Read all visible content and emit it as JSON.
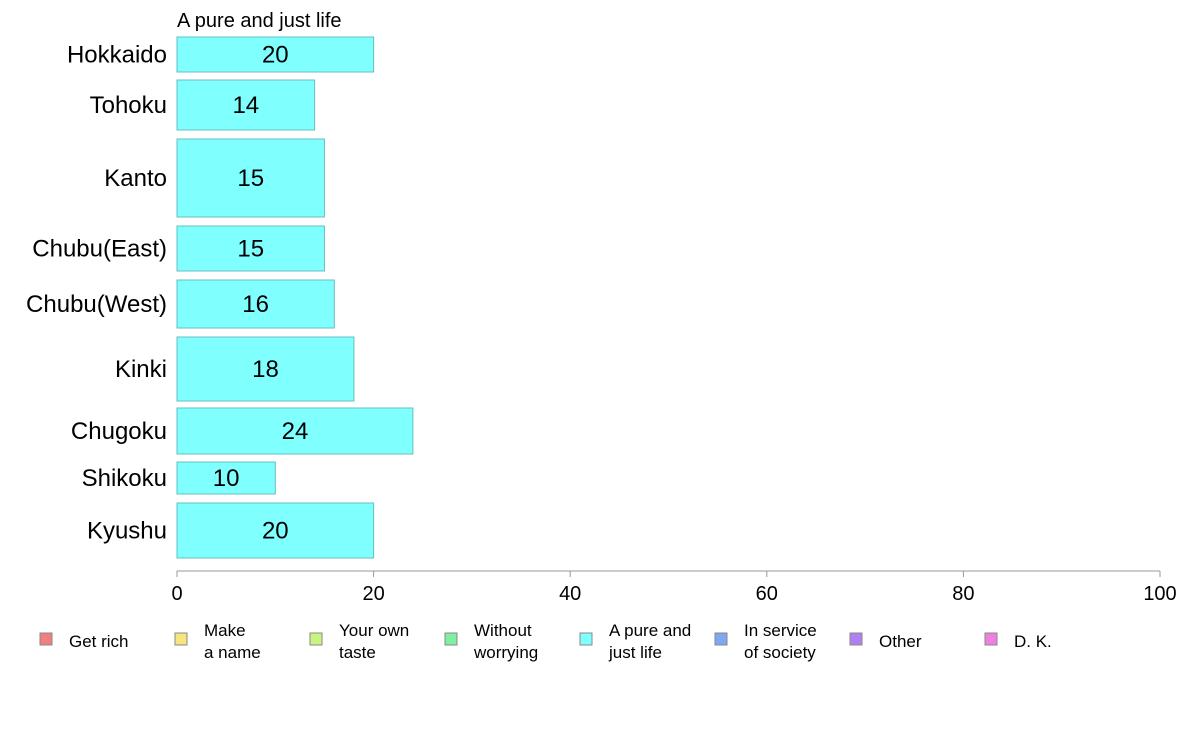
{
  "chart_data": {
    "type": "bar",
    "orientation": "horizontal",
    "title": "A pure and just life",
    "categories": [
      "Hokkaido",
      "Tohoku",
      "Kanto",
      "Chubu(East)",
      "Chubu(West)",
      "Kinki",
      "Chugoku",
      "Shikoku",
      "Kyushu"
    ],
    "values": [
      20,
      14,
      15,
      15,
      16,
      18,
      24,
      10,
      20
    ],
    "series_color": "#80ffff",
    "bar_border_color": "#66bfbf",
    "xlim": [
      0,
      100
    ],
    "xticks": [
      0,
      20,
      40,
      60,
      80,
      100
    ],
    "grid": false,
    "legend_position": "bottom",
    "legend": [
      {
        "label": [
          "Get rich"
        ],
        "color": "#f08080"
      },
      {
        "label": [
          "Make",
          "a name"
        ],
        "color": "#f5e680"
      },
      {
        "label": [
          "Your own",
          "taste"
        ],
        "color": "#c8f580"
      },
      {
        "label": [
          "Without",
          "worrying"
        ],
        "color": "#80f0a0"
      },
      {
        "label": [
          "A pure and",
          "just life"
        ],
        "color": "#80ffff"
      },
      {
        "label": [
          "In service",
          "of society"
        ],
        "color": "#80a8f0"
      },
      {
        "label": [
          "Other"
        ],
        "color": "#b080f0"
      },
      {
        "label": [
          "D. K."
        ],
        "color": "#f080e0"
      }
    ]
  }
}
